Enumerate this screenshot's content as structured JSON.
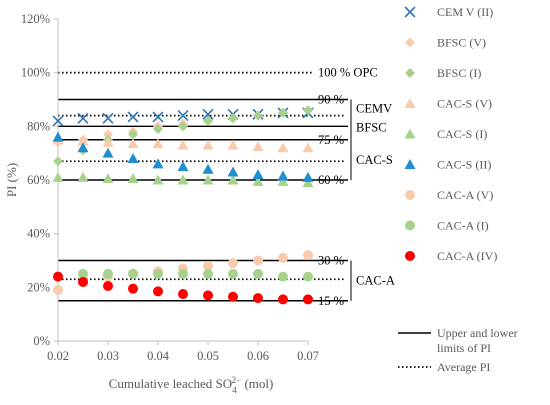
{
  "chart_data": {
    "type": "scatter",
    "xlabel": "Cumulative leached SO",
    "xlabel_sub": "4",
    "xlabel_sup": "2−",
    "xlabel_unit": " (mol)",
    "ylabel": "PI (%)",
    "xlim": [
      0.02,
      0.07
    ],
    "ylim": [
      0,
      120
    ],
    "x_ticks": [
      0.02,
      0.03,
      0.04,
      0.05,
      0.06,
      0.07
    ],
    "x_tick_labels": [
      "0.02",
      "0.03",
      "0.04",
      "0.05",
      "0.06",
      "0.07"
    ],
    "y_ticks": [
      0,
      20,
      40,
      60,
      80,
      100,
      120
    ],
    "y_tick_labels": [
      "0%",
      "20%",
      "40%",
      "60%",
      "80%",
      "100%",
      "120%"
    ],
    "grid": false,
    "legend_position": "right",
    "x": [
      0.02,
      0.025,
      0.03,
      0.035,
      0.04,
      0.045,
      0.05,
      0.055,
      0.06,
      0.065,
      0.07
    ],
    "series": [
      {
        "name": "CEM V (II)",
        "marker": "x",
        "color": "#2E75B6",
        "values": [
          82,
          83,
          83,
          83.5,
          83.5,
          84,
          84.5,
          84.5,
          84.5,
          85,
          85
        ]
      },
      {
        "name": "BFSC (V)",
        "marker": "diamond",
        "color": "#F8CBAD",
        "values": [
          74,
          75,
          77,
          78,
          80,
          81,
          82,
          83,
          84,
          85,
          86
        ]
      },
      {
        "name": "BFSC (I)",
        "marker": "diamond",
        "color": "#A9D18E",
        "values": [
          67,
          71,
          75,
          77,
          79,
          80,
          82,
          83,
          84,
          85,
          86
        ]
      },
      {
        "name": "CAC-S (V)",
        "marker": "triangle",
        "color": "#F8CBAD",
        "values": [
          75,
          74.5,
          74,
          73.5,
          73.5,
          73,
          73,
          73,
          72.5,
          72,
          72
        ]
      },
      {
        "name": "CAC-S (I)",
        "marker": "triangle",
        "color": "#A9D18E",
        "values": [
          61,
          61,
          60.5,
          60.5,
          60,
          60,
          60,
          60,
          59.5,
          59.5,
          59
        ]
      },
      {
        "name": "CAC-S (II)",
        "marker": "triangle",
        "color": "#1F8FD0",
        "values": [
          76,
          72,
          70,
          68,
          66,
          65,
          64,
          63,
          62,
          61.5,
          61
        ]
      },
      {
        "name": "CAC-A (V)",
        "marker": "circle",
        "color": "#F8CBAD",
        "values": [
          19,
          22,
          24,
          25,
          26,
          27,
          28,
          29,
          30,
          31,
          32
        ]
      },
      {
        "name": "CAC-A (I)",
        "marker": "circle",
        "color": "#A9D18E",
        "values": [
          24,
          25,
          25,
          25,
          25,
          25,
          25,
          25,
          25,
          24,
          24
        ]
      },
      {
        "name": "CAC-A (IV)",
        "marker": "circle",
        "color": "#FF0000",
        "values": [
          24,
          22,
          20.5,
          19.5,
          18.5,
          17.5,
          17,
          16.5,
          16,
          15.5,
          15.5
        ]
      }
    ],
    "reference_lines": [
      {
        "y": 100,
        "style": "dotted",
        "label": "100 % OPC"
      },
      {
        "y": 90,
        "style": "solid",
        "label": "90 %"
      },
      {
        "y": 84,
        "style": "dotted",
        "label": ""
      },
      {
        "y": 80,
        "style": "solid",
        "label": ""
      },
      {
        "y": 75,
        "style": "solid",
        "label": "75 %"
      },
      {
        "y": 67,
        "style": "dotted",
        "label": ""
      },
      {
        "y": 60,
        "style": "solid",
        "label": "60 %"
      },
      {
        "y": 30,
        "style": "solid",
        "label": "30 %"
      },
      {
        "y": 23,
        "style": "dotted",
        "label": ""
      },
      {
        "y": 15,
        "style": "solid",
        "label": "15 %"
      }
    ],
    "group_labels": [
      {
        "text": "CEMV",
        "bracket_from": 90,
        "bracket_to": 75
      },
      {
        "text": "BFSC",
        "bracket_from": 90,
        "bracket_to": 75
      },
      {
        "text": "CAC-S",
        "bracket_from": 75,
        "bracket_to": 60
      },
      {
        "text": "CAC-A",
        "bracket_from": 30,
        "bracket_to": 15
      }
    ],
    "line_legend": [
      {
        "style": "solid",
        "label": "Upper and lower limits of PI"
      },
      {
        "style": "dotted",
        "label": "Average PI"
      }
    ]
  }
}
